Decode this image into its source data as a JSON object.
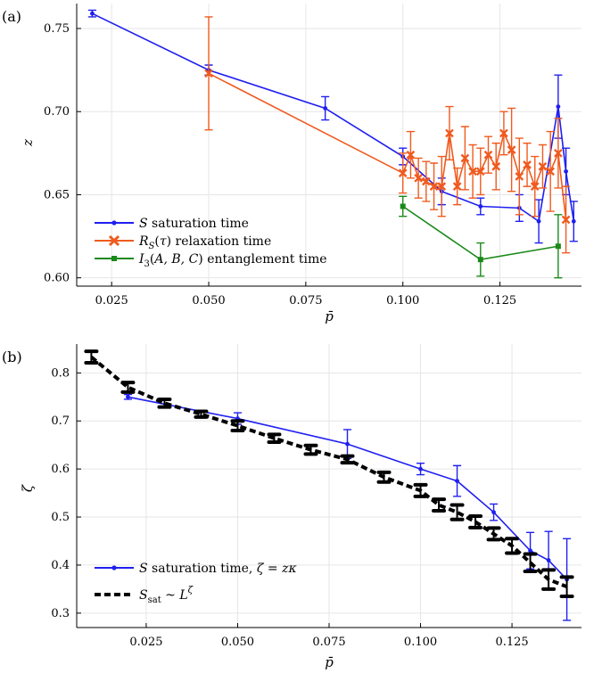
{
  "chart_data": [
    {
      "panel_label": "(a)",
      "type": "line",
      "xlabel": "p̄",
      "ylabel": "z",
      "xlim": [
        0.016,
        0.146
      ],
      "ylim": [
        0.595,
        0.765
      ],
      "xticks": [
        0.025,
        0.05,
        0.075,
        0.1,
        0.125
      ],
      "xtick_labels": [
        "0.025",
        "0.050",
        "0.075",
        "0.100",
        "0.125"
      ],
      "yticks": [
        0.6,
        0.65,
        0.7,
        0.75
      ],
      "ytick_labels": [
        "0.60",
        "0.65",
        "0.70",
        "0.75"
      ],
      "grid": true,
      "legend_position": "bottom-left",
      "series": [
        {
          "name": "S saturation time",
          "color": "#1f1ff0",
          "marker": "circle",
          "x": [
            0.02,
            0.05,
            0.08,
            0.1,
            0.11,
            0.12,
            0.13,
            0.135,
            0.14,
            0.142,
            0.144
          ],
          "y": [
            0.759,
            0.725,
            0.702,
            0.673,
            0.652,
            0.643,
            0.642,
            0.634,
            0.703,
            0.664,
            0.634
          ],
          "yerr": [
            0.002,
            0.003,
            0.007,
            0.005,
            0.008,
            0.005,
            0.008,
            0.013,
            0.019,
            0.014,
            0.012
          ]
        },
        {
          "name": "R_S(τ) relaxation time",
          "color": "#f05a1e",
          "marker": "x",
          "x": [
            0.05,
            0.1,
            0.102,
            0.104,
            0.106,
            0.108,
            0.11,
            0.112,
            0.114,
            0.116,
            0.118,
            0.12,
            0.122,
            0.124,
            0.126,
            0.128,
            0.13,
            0.132,
            0.134,
            0.136,
            0.138,
            0.14,
            0.142
          ],
          "y": [
            0.723,
            0.663,
            0.674,
            0.66,
            0.658,
            0.655,
            0.655,
            0.687,
            0.655,
            0.672,
            0.664,
            0.664,
            0.674,
            0.667,
            0.687,
            0.677,
            0.661,
            0.668,
            0.655,
            0.667,
            0.664,
            0.675,
            0.635
          ],
          "yerr": [
            0.034,
            0.012,
            0.014,
            0.012,
            0.012,
            0.014,
            0.018,
            0.016,
            0.011,
            0.019,
            0.016,
            0.014,
            0.011,
            0.014,
            0.013,
            0.025,
            0.023,
            0.013,
            0.018,
            0.013,
            0.024,
            0.021,
            0.02
          ]
        },
        {
          "name": "I_3(A, B, C) entanglement time",
          "color": "#1a8a1a",
          "marker": "square",
          "x": [
            0.1,
            0.12,
            0.14
          ],
          "y": [
            0.643,
            0.611,
            0.619
          ],
          "yerr": [
            0.006,
            0.01,
            0.019
          ]
        }
      ]
    },
    {
      "panel_label": "(b)",
      "type": "line",
      "xlabel": "p̄",
      "ylabel": "ζ",
      "xlim": [
        0.006,
        0.144
      ],
      "ylim": [
        0.27,
        0.86
      ],
      "xticks": [
        0.025,
        0.05,
        0.075,
        0.1,
        0.125
      ],
      "xtick_labels": [
        "0.025",
        "0.050",
        "0.075",
        "0.100",
        "0.125"
      ],
      "yticks": [
        0.3,
        0.4,
        0.5,
        0.6,
        0.7,
        0.8
      ],
      "ytick_labels": [
        "0.3",
        "0.4",
        "0.5",
        "0.6",
        "0.7",
        "0.8"
      ],
      "grid": true,
      "legend_position": "bottom-left",
      "series": [
        {
          "name": "S saturation time, ζ = zκ",
          "color": "#1f1ff0",
          "marker": "circle",
          "x": [
            0.02,
            0.05,
            0.08,
            0.1,
            0.11,
            0.12,
            0.13,
            0.135,
            0.14
          ],
          "y": [
            0.75,
            0.705,
            0.652,
            0.6,
            0.575,
            0.51,
            0.43,
            0.41,
            0.37
          ],
          "yerr": [
            0.005,
            0.012,
            0.03,
            0.012,
            0.032,
            0.017,
            0.038,
            0.06,
            0.085
          ]
        },
        {
          "name": "S_sat ~ L^ζ",
          "color": "#000000",
          "marker": "none",
          "dashed": true,
          "x": [
            0.01,
            0.02,
            0.03,
            0.04,
            0.05,
            0.06,
            0.07,
            0.08,
            0.09,
            0.1,
            0.105,
            0.11,
            0.115,
            0.12,
            0.125,
            0.13,
            0.135,
            0.14
          ],
          "y": [
            0.833,
            0.77,
            0.737,
            0.714,
            0.69,
            0.664,
            0.64,
            0.62,
            0.583,
            0.555,
            0.525,
            0.51,
            0.49,
            0.465,
            0.44,
            0.405,
            0.37,
            0.355
          ],
          "yerr": [
            0.012,
            0.01,
            0.008,
            0.006,
            0.01,
            0.008,
            0.009,
            0.007,
            0.01,
            0.012,
            0.012,
            0.015,
            0.012,
            0.012,
            0.015,
            0.018,
            0.02,
            0.02
          ]
        }
      ]
    }
  ]
}
